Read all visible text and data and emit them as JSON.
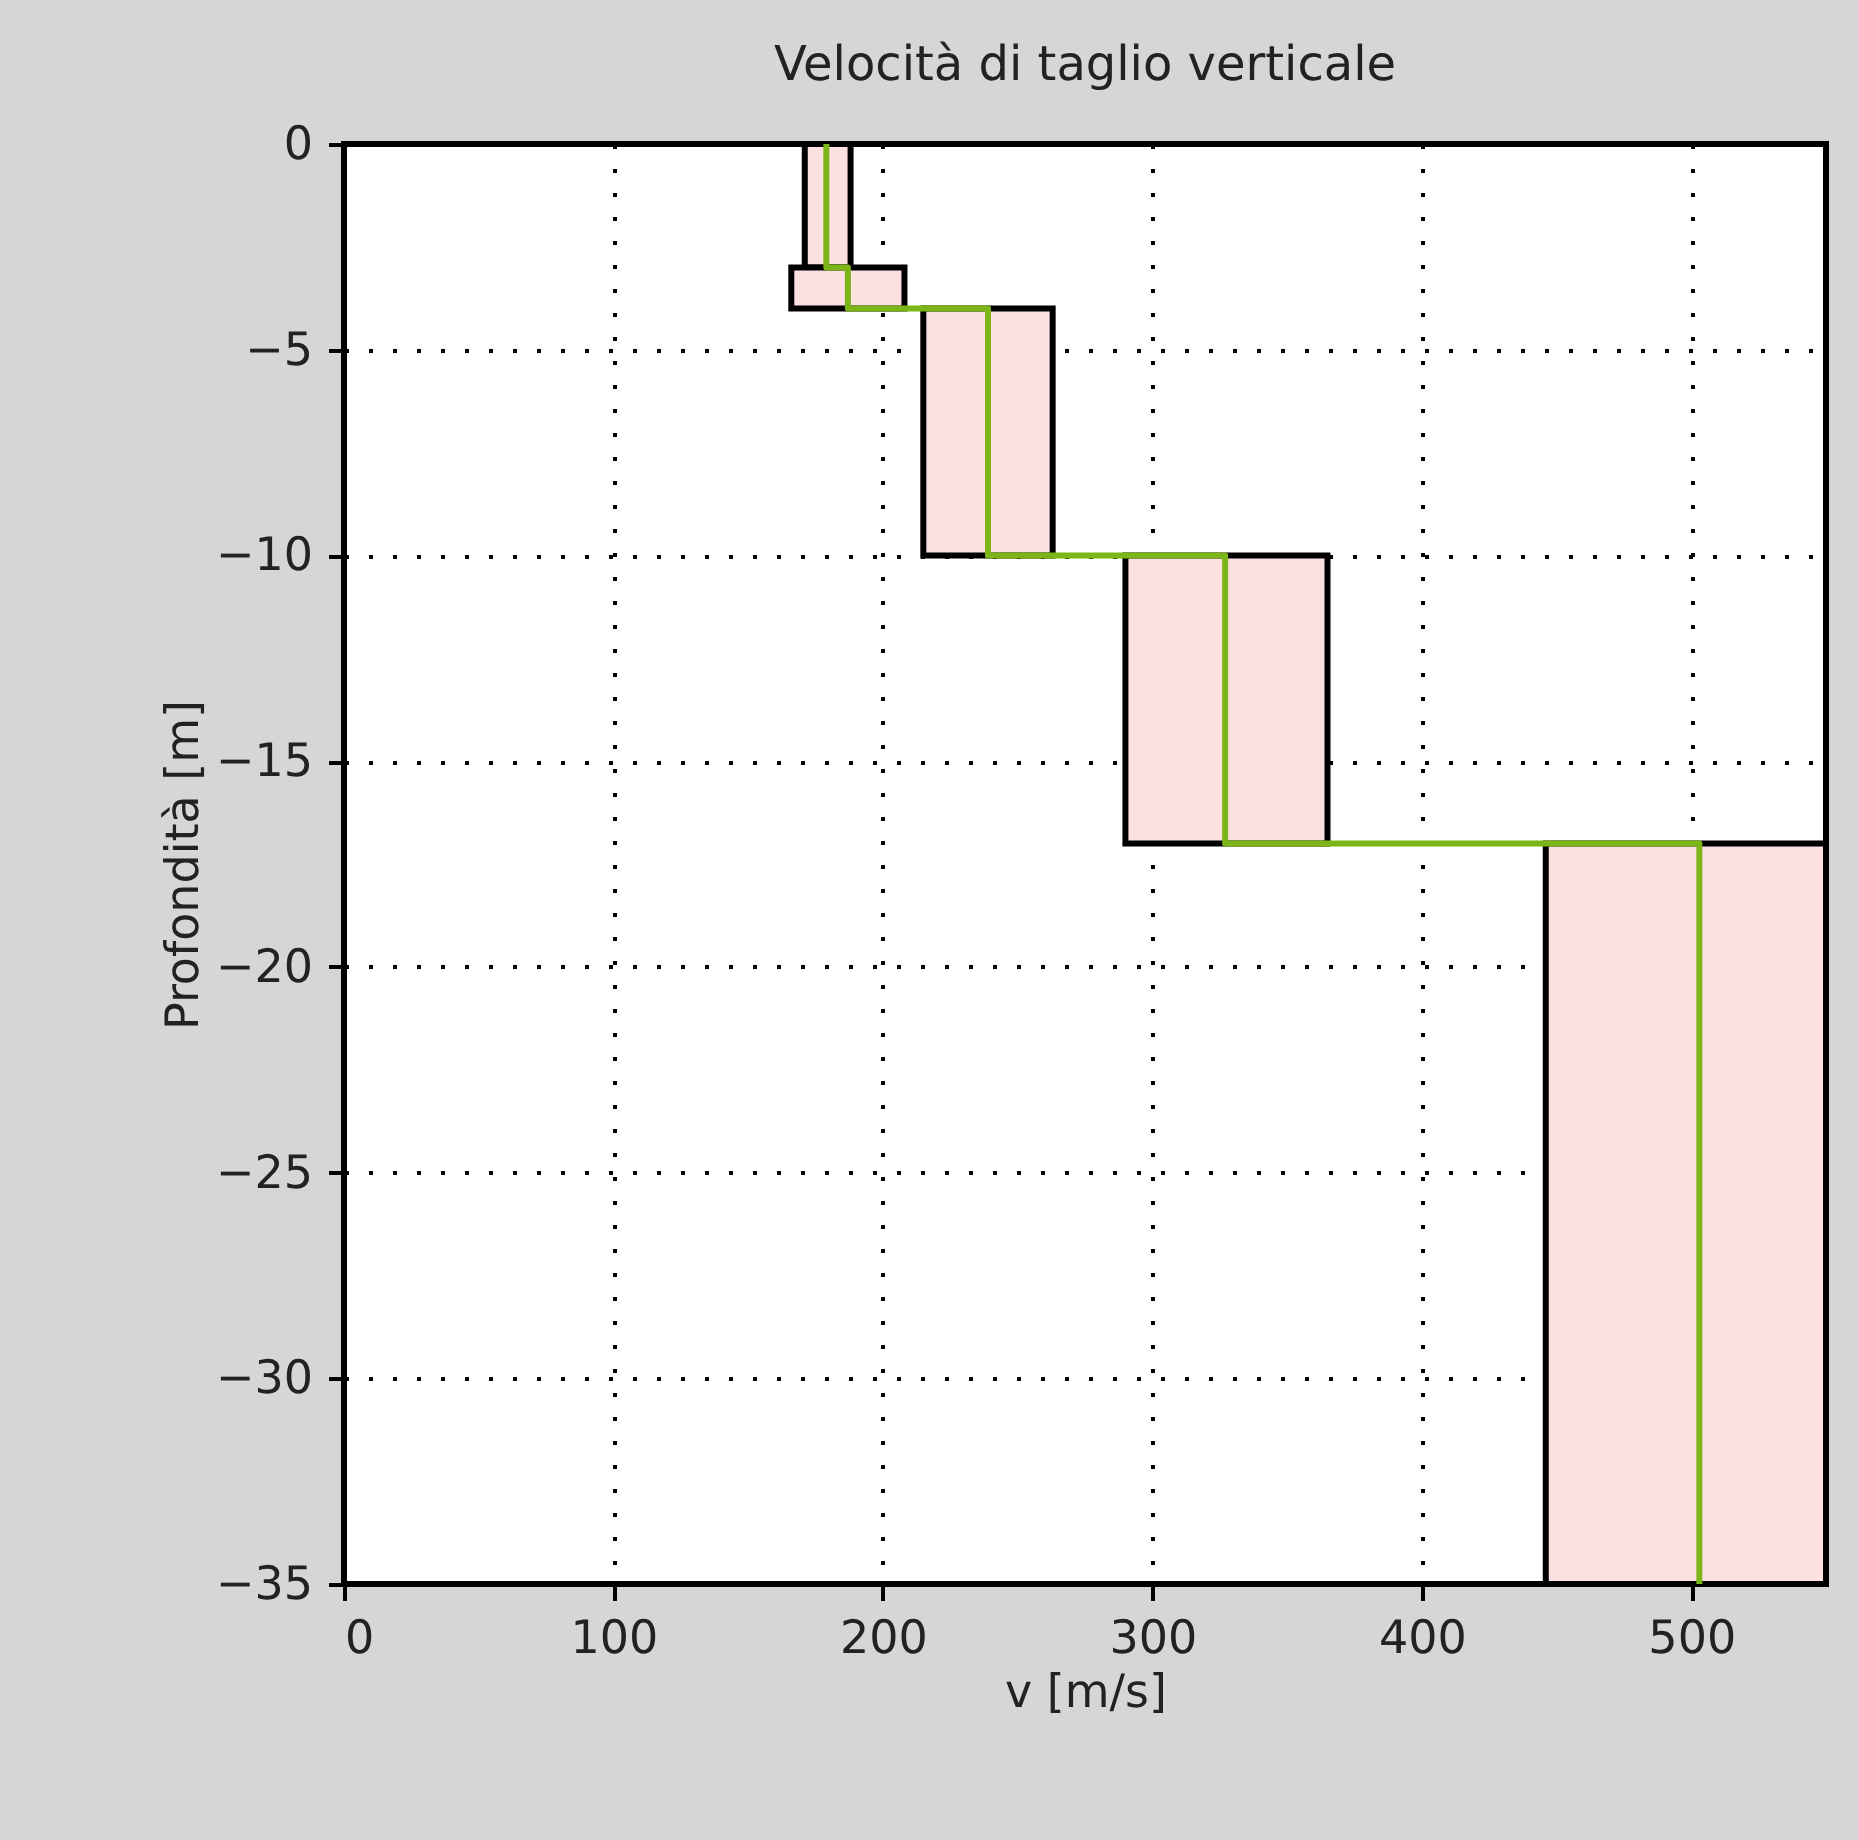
{
  "chart_data": {
    "type": "line",
    "orientation": "horizontal",
    "title": "Velocità di taglio verticale",
    "xlabel": "v [m/s]",
    "ylabel": "Profondità [m]",
    "xlim": [
      0,
      550
    ],
    "xticks": [
      0,
      100,
      200,
      300,
      400,
      500
    ],
    "ylim": [
      -35,
      0
    ],
    "yticks": [
      0,
      -5,
      -10,
      -15,
      -20,
      -25,
      -30,
      -35
    ],
    "grid": true,
    "line_style": "solid",
    "marker": "none",
    "series": [
      {
        "color": "#7cb518",
        "x": [
          0,
          -3,
          -3,
          -4,
          -4,
          -10,
          -10,
          -17,
          -17,
          -35
        ],
        "values": [
          179,
          179,
          187,
          187,
          239,
          239,
          327,
          327,
          503,
          503
        ],
        "lower": [
          171,
          171,
          166,
          166,
          215,
          215,
          290,
          290,
          446,
          446
        ],
        "upper": [
          188,
          188,
          208,
          208,
          263,
          263,
          365,
          365,
          550,
          550
        ]
      }
    ]
  }
}
